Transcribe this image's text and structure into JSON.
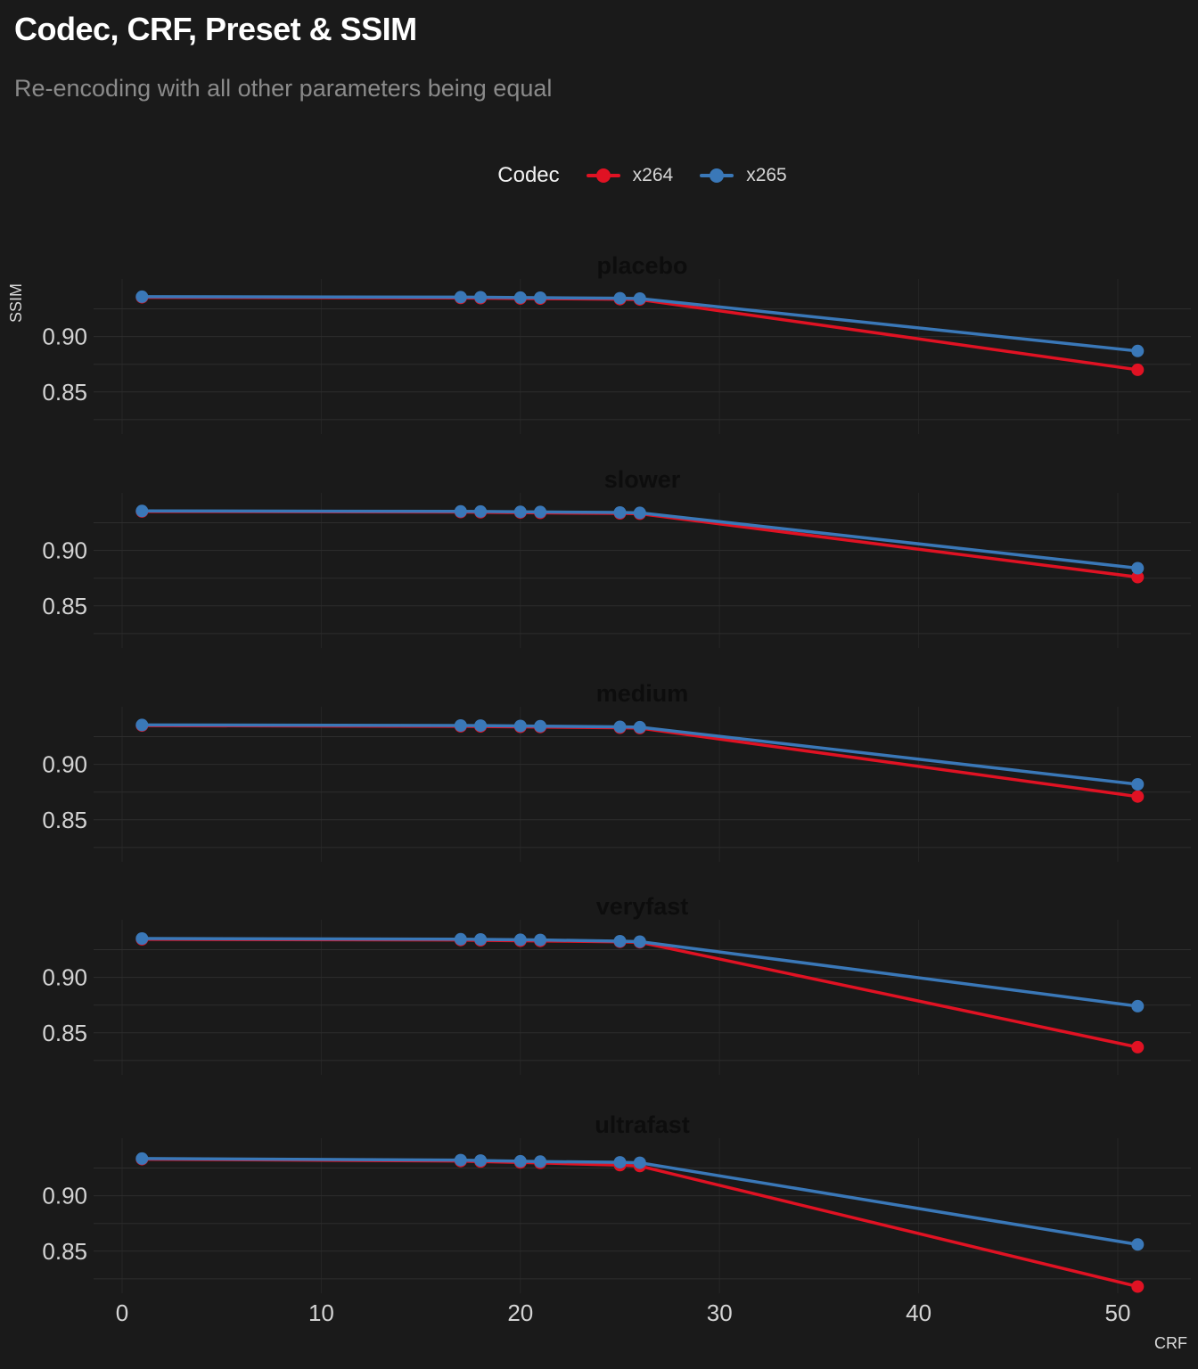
{
  "page": {
    "background": "#1a1a1a"
  },
  "header": {
    "title": "Codec, CRF, Preset & SSIM",
    "subtitle": "Re-encoding with all other parameters being equal"
  },
  "legend": {
    "title": "Codec",
    "items": [
      {
        "label": "x264",
        "color": "#e01223"
      },
      {
        "label": "x265",
        "color": "#3a78b8"
      }
    ]
  },
  "chart_data": {
    "type": "line",
    "title": "Codec, CRF, Preset & SSIM",
    "subtitle": "Re-encoding with all other parameters being equal",
    "facet_variable": "preset",
    "legend_position": "top-center",
    "grid": true,
    "x": {
      "label": "CRF",
      "ticks": [
        0,
        10,
        20,
        30,
        40,
        50
      ],
      "domain": [
        -1.4,
        53.6
      ]
    },
    "y": {
      "label": "SSIM",
      "tick_labels": [
        0.9,
        0.85
      ],
      "gridlines": [
        0.825,
        0.85,
        0.875,
        0.9,
        0.925
      ],
      "domain": [
        0.812,
        0.952
      ]
    },
    "crf": [
      1,
      17,
      18,
      20,
      21,
      25,
      26,
      51
    ],
    "series_colors": {
      "x264": "#e01223",
      "x265": "#3a78b8"
    },
    "facets": [
      {
        "title": "placebo",
        "series": [
          {
            "name": "x264",
            "values": [
              0.9354,
              0.9349,
              0.9347,
              0.9344,
              0.9342,
              0.9337,
              0.9334,
              0.87
            ]
          },
          {
            "name": "x265",
            "values": [
              0.936,
              0.9356,
              0.9355,
              0.9352,
              0.9351,
              0.9346,
              0.9343,
              0.887
            ]
          }
        ]
      },
      {
        "title": "slower",
        "series": [
          {
            "name": "x264",
            "values": [
              0.9352,
              0.9347,
              0.9345,
              0.9342,
              0.934,
              0.9335,
              0.9332,
              0.876
            ]
          },
          {
            "name": "x265",
            "values": [
              0.9357,
              0.9353,
              0.9352,
              0.9349,
              0.9348,
              0.9343,
              0.934,
              0.884
            ]
          }
        ]
      },
      {
        "title": "medium",
        "series": [
          {
            "name": "x264",
            "values": [
              0.935,
              0.9344,
              0.9342,
              0.9339,
              0.9337,
              0.9331,
              0.9328,
              0.871
            ]
          },
          {
            "name": "x265",
            "values": [
              0.9356,
              0.9351,
              0.935,
              0.9347,
              0.9345,
              0.9339,
              0.9336,
              0.882
            ]
          }
        ]
      },
      {
        "title": "veryfast",
        "series": [
          {
            "name": "x264",
            "values": [
              0.9344,
              0.9337,
              0.9335,
              0.9331,
              0.9329,
              0.9321,
              0.9317,
              0.837
            ]
          },
          {
            "name": "x265",
            "values": [
              0.9351,
              0.9345,
              0.9343,
              0.934,
              0.9338,
              0.9327,
              0.9323,
              0.874
            ]
          }
        ]
      },
      {
        "title": "ultrafast",
        "series": [
          {
            "name": "x264",
            "values": [
              0.933,
              0.9313,
              0.9308,
              0.93,
              0.9296,
              0.9276,
              0.9268,
              0.818
            ]
          },
          {
            "name": "x265",
            "values": [
              0.9336,
              0.9322,
              0.9318,
              0.9312,
              0.9308,
              0.9302,
              0.9298,
              0.856
            ]
          }
        ]
      }
    ]
  }
}
